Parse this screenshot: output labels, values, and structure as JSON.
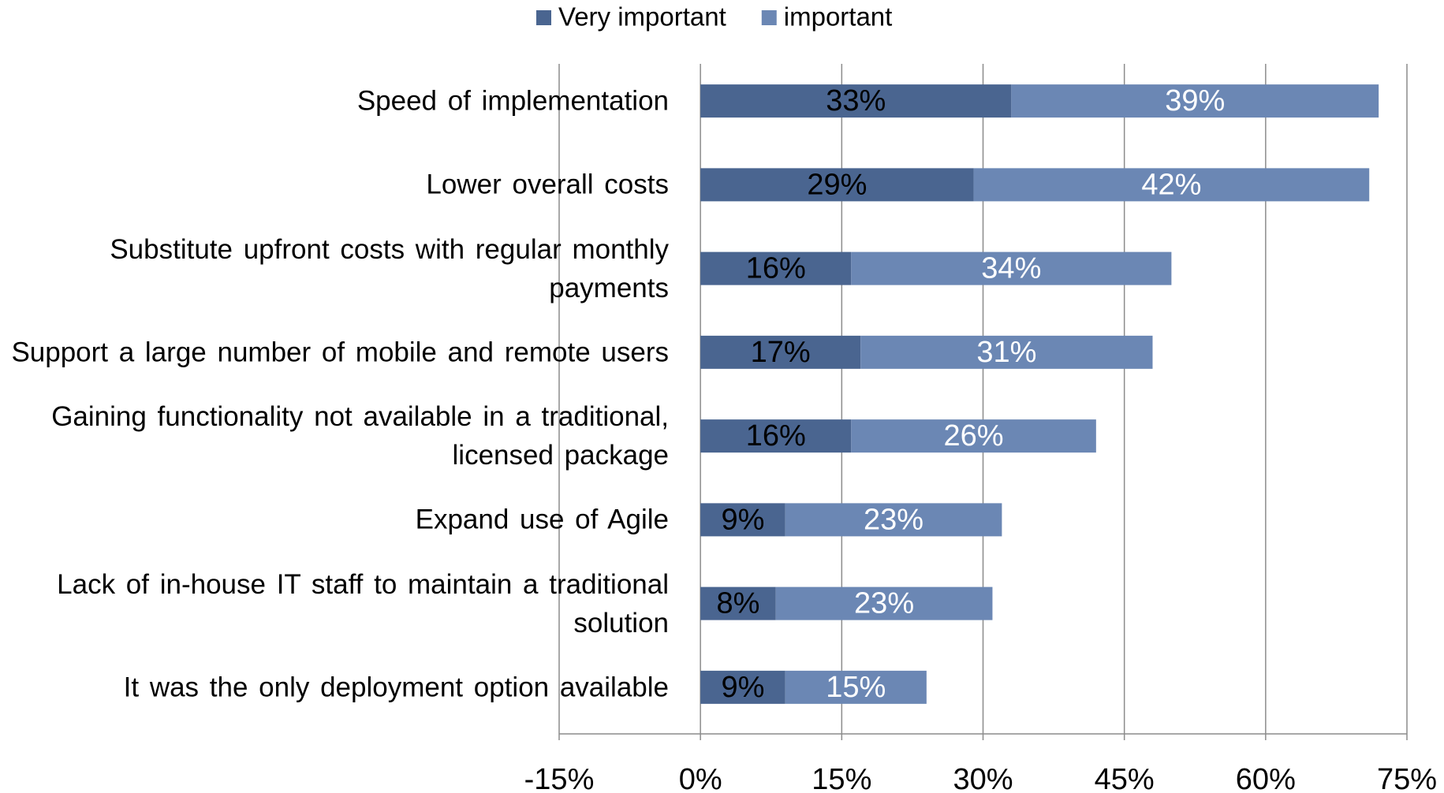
{
  "chart_data": {
    "type": "stacked_bar",
    "orientation": "horizontal",
    "categories": [
      "Speed of implementation",
      "Lower overall costs",
      "Substitute upfront costs with regular monthly payments",
      "Support a large number of mobile and remote users",
      "Gaining functionality not available in a traditional, licensed package",
      "Expand use of Agile",
      "Lack of in-house IT staff to maintain a traditional solution",
      "It was the only deployment option available"
    ],
    "series": [
      {
        "name": "Very important",
        "color": "#4a6590",
        "label_color": "#000000",
        "values": [
          33,
          29,
          16,
          17,
          16,
          9,
          8,
          9
        ],
        "value_labels": [
          "33%",
          "29%",
          "16%",
          "17%",
          "16%",
          "9%",
          "8%",
          "9%"
        ]
      },
      {
        "name": "important",
        "color": "#6b87b4",
        "label_color": "#ffffff",
        "values": [
          39,
          42,
          34,
          31,
          26,
          23,
          23,
          15
        ],
        "value_labels": [
          "39%",
          "42%",
          "34%",
          "31%",
          "26%",
          "23%",
          "23%",
          "15%"
        ]
      }
    ],
    "xlim": [
      -15,
      75
    ],
    "xticks": [
      {
        "value": -15,
        "label": "-15%"
      },
      {
        "value": 0,
        "label": "0%"
      },
      {
        "value": 15,
        "label": "15%"
      },
      {
        "value": 30,
        "label": "30%"
      },
      {
        "value": 45,
        "label": "45%"
      },
      {
        "value": 60,
        "label": "60%"
      },
      {
        "value": 75,
        "label": "75%"
      }
    ],
    "grid": true,
    "legend": "top"
  }
}
